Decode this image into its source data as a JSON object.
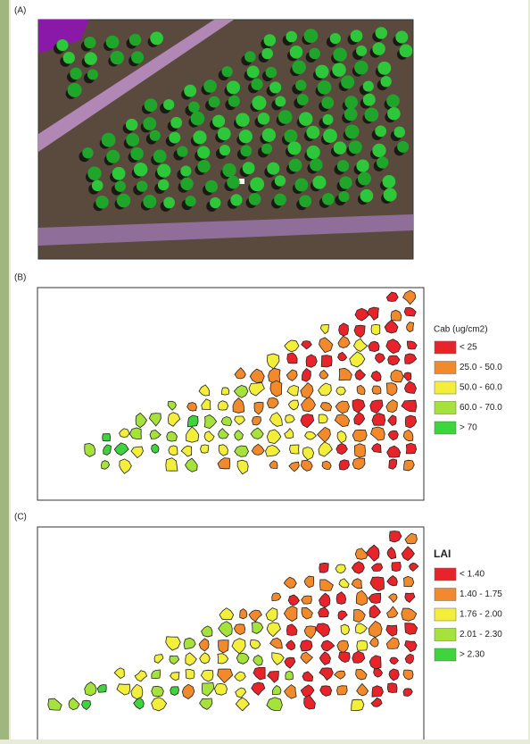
{
  "panels": [
    {
      "label": "(A)"
    },
    {
      "label": "(B)",
      "legend": {
        "title": "Cab (ug/cm2)",
        "items": [
          {
            "label": "< 25",
            "color": "#e8232a"
          },
          {
            "label": "25.0 - 50.0",
            "color": "#f28a2b"
          },
          {
            "label": "50.0 - 60.0",
            "color": "#f2ee3a"
          },
          {
            "label": "60.0 - 70.0",
            "color": "#a6e23c"
          },
          {
            "label": "> 70",
            "color": "#3dd43c"
          }
        ]
      }
    },
    {
      "label": "(C)",
      "legend": {
        "title": "LAI",
        "items": [
          {
            "label": "< 1.40",
            "color": "#e8232a"
          },
          {
            "label": "1.40 - 1.75",
            "color": "#f28a2b"
          },
          {
            "label": "1.76 - 2.00",
            "color": "#f2ee3a"
          },
          {
            "label": "2.01 - 2.30",
            "color": "#a6e23c"
          },
          {
            "label": "> 2.30",
            "color": "#3dd43c"
          }
        ]
      }
    }
  ]
}
